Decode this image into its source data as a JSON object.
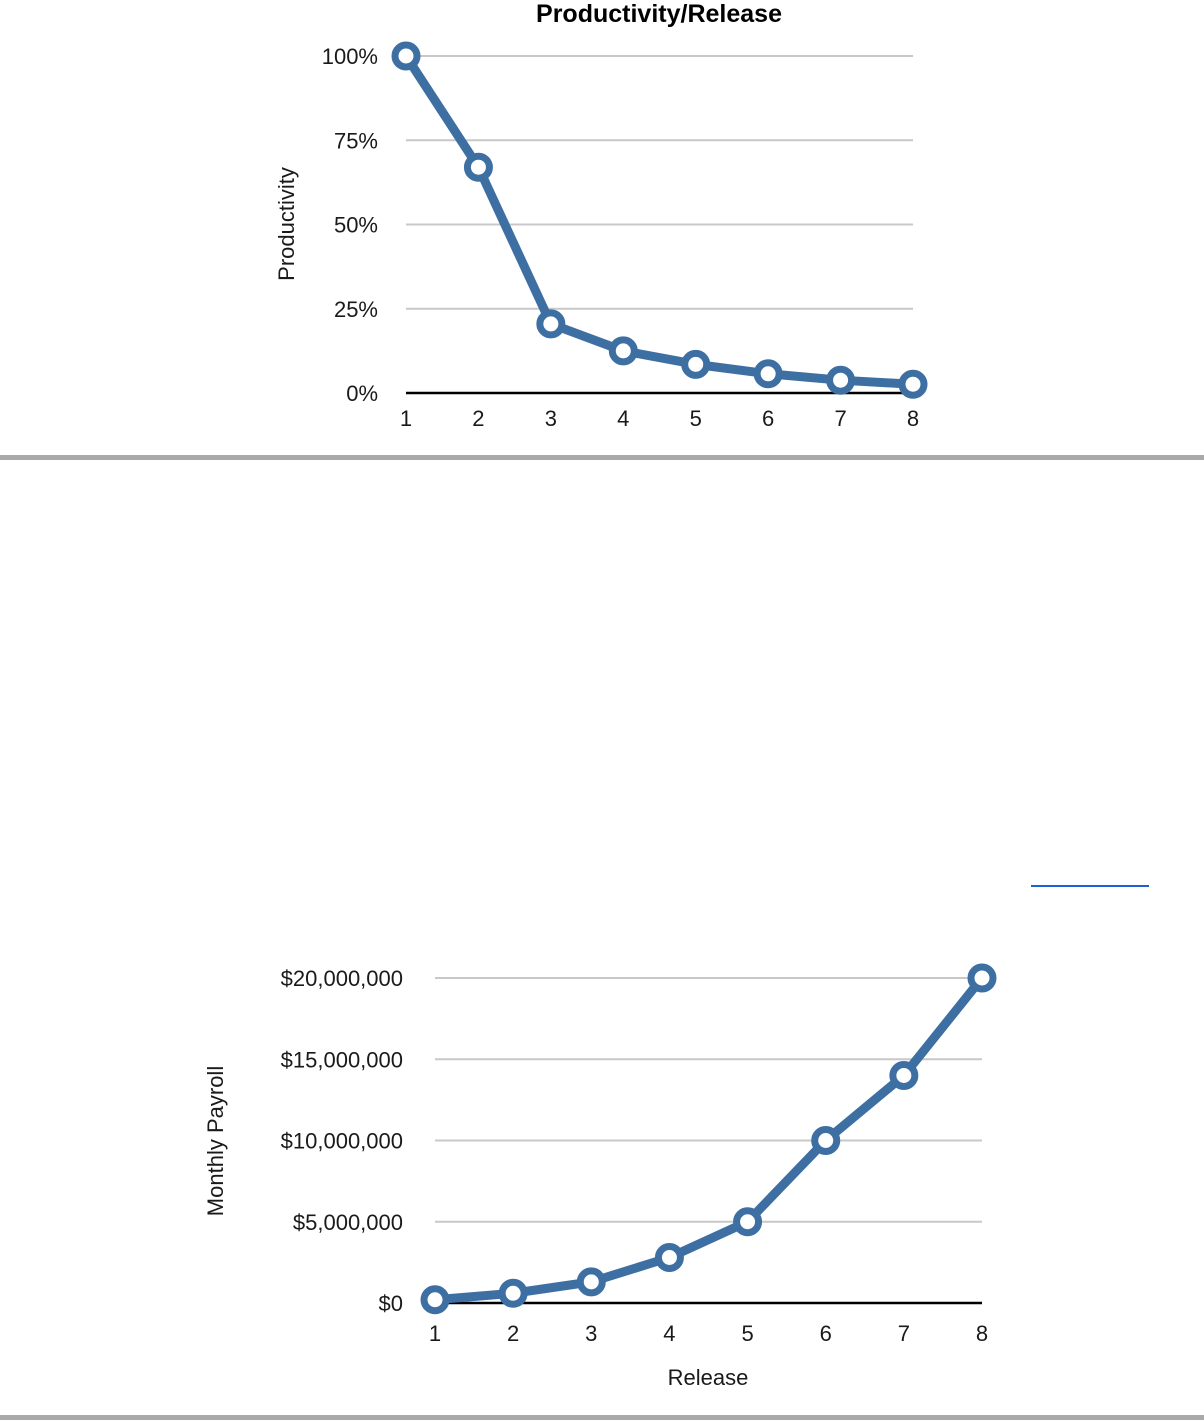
{
  "colors": {
    "series": "#3e6fa3",
    "divider": "#a9a9a9",
    "link": "#1f5fd6"
  },
  "chart_data": [
    {
      "type": "line",
      "title": "Productivity/Release",
      "xlabel": "",
      "ylabel": "Productivity",
      "categories": [
        "1",
        "2",
        "3",
        "4",
        "5",
        "6",
        "7",
        "8"
      ],
      "values": [
        100,
        67,
        20.5,
        12.5,
        8.5,
        5.7,
        3.8,
        2.6
      ],
      "ylim": [
        0,
        100
      ],
      "yticks": [
        0,
        25,
        50,
        75,
        100
      ],
      "ytick_labels": [
        "0%",
        "25%",
        "50%",
        "75%",
        "100%"
      ],
      "grid": true,
      "legend": "none"
    },
    {
      "type": "line",
      "title": "",
      "xlabel": "Release",
      "ylabel": "Monthly Payroll",
      "categories": [
        "1",
        "2",
        "3",
        "4",
        "5",
        "6",
        "7",
        "8"
      ],
      "values": [
        200000,
        600000,
        1300000,
        2800000,
        5000000,
        10000000,
        14000000,
        20000000
      ],
      "ylim": [
        0,
        20000000
      ],
      "yticks": [
        0,
        5000000,
        10000000,
        15000000,
        20000000
      ],
      "ytick_labels": [
        "$0",
        "$5,000,000",
        "$10,000,000",
        "$15,000,000",
        "$20,000,000"
      ],
      "grid": true,
      "legend": "none"
    }
  ]
}
